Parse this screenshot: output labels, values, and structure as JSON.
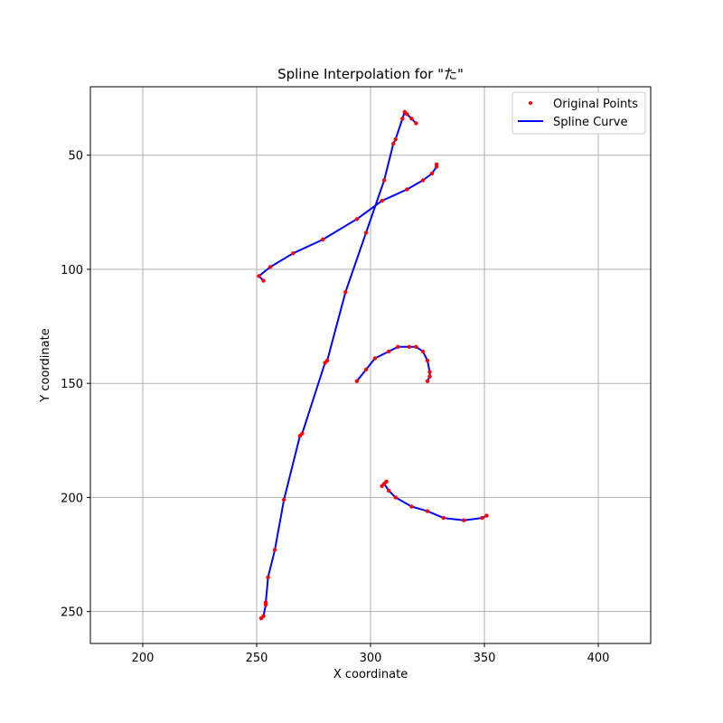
{
  "chart_data": {
    "type": "line",
    "title": "Spline Interpolation for \"た\"",
    "xlabel": "X coordinate",
    "ylabel": "Y coordinate",
    "xlim": [
      177,
      423
    ],
    "ylim": [
      264,
      20
    ],
    "y_inverted": true,
    "x_ticks": [
      200,
      250,
      300,
      350,
      400
    ],
    "y_ticks": [
      50,
      100,
      150,
      200,
      250
    ],
    "grid": true,
    "legend_position": "top-right",
    "series": [
      {
        "name": "Original Points",
        "kind": "points",
        "color": "#ff0000",
        "strokes": [
          [
            [
              320,
              36
            ],
            [
              318,
              34
            ],
            [
              316,
              32
            ],
            [
              315,
              31
            ],
            [
              314,
              34
            ],
            [
              311,
              43
            ],
            [
              310,
              45
            ],
            [
              306,
              61
            ],
            [
              298,
              84
            ],
            [
              289,
              110
            ],
            [
              281,
              140
            ],
            [
              280,
              141
            ],
            [
              270,
              172
            ],
            [
              269,
              173
            ],
            [
              262,
              201
            ],
            [
              258,
              223
            ],
            [
              255,
              235
            ],
            [
              254,
              246
            ],
            [
              254,
              247
            ],
            [
              253,
              252
            ],
            [
              252,
              253
            ]
          ],
          [
            [
              253,
              105
            ],
            [
              251,
              103
            ],
            [
              256,
              99
            ],
            [
              266,
              93
            ],
            [
              279,
              87
            ],
            [
              294,
              78
            ],
            [
              305,
              70
            ],
            [
              316,
              65
            ],
            [
              323,
              61
            ],
            [
              327,
              58
            ],
            [
              329,
              55
            ],
            [
              329,
              54
            ]
          ],
          [
            [
              294,
              149
            ],
            [
              298,
              144
            ],
            [
              302,
              139
            ],
            [
              308,
              136
            ],
            [
              312,
              134
            ],
            [
              317,
              134
            ],
            [
              320,
              134
            ],
            [
              323,
              136
            ],
            [
              325,
              140
            ],
            [
              326,
              145
            ],
            [
              326,
              147
            ],
            [
              325,
              149
            ]
          ],
          [
            [
              307,
              193
            ],
            [
              305,
              195
            ],
            [
              306,
              194
            ],
            [
              308,
              197
            ],
            [
              311,
              200
            ],
            [
              318,
              204
            ],
            [
              325,
              206
            ],
            [
              332,
              209
            ],
            [
              341,
              210
            ],
            [
              349,
              209
            ],
            [
              351,
              208
            ]
          ]
        ]
      },
      {
        "name": "Spline Curve",
        "kind": "line",
        "color": "#0000ff",
        "strokes": [
          [
            [
              320,
              36
            ],
            [
              318,
              34
            ],
            [
              316,
              32
            ],
            [
              315,
              31
            ],
            [
              314,
              34
            ],
            [
              311,
              43
            ],
            [
              310,
              45
            ],
            [
              306,
              61
            ],
            [
              298,
              84
            ],
            [
              289,
              110
            ],
            [
              281,
              140
            ],
            [
              280,
              141
            ],
            [
              270,
              172
            ],
            [
              269,
              173
            ],
            [
              262,
              201
            ],
            [
              258,
              223
            ],
            [
              255,
              235
            ],
            [
              254,
              246
            ],
            [
              254,
              247
            ],
            [
              253,
              252
            ],
            [
              252,
              253
            ]
          ],
          [
            [
              253,
              105
            ],
            [
              251,
              103
            ],
            [
              256,
              99
            ],
            [
              266,
              93
            ],
            [
              279,
              87
            ],
            [
              294,
              78
            ],
            [
              305,
              70
            ],
            [
              316,
              65
            ],
            [
              323,
              61
            ],
            [
              327,
              58
            ],
            [
              329,
              55
            ],
            [
              329,
              54
            ]
          ],
          [
            [
              294,
              149
            ],
            [
              298,
              144
            ],
            [
              302,
              139
            ],
            [
              308,
              136
            ],
            [
              312,
              134
            ],
            [
              317,
              134
            ],
            [
              320,
              134
            ],
            [
              323,
              136
            ],
            [
              325,
              140
            ],
            [
              326,
              145
            ],
            [
              326,
              147
            ],
            [
              325,
              149
            ]
          ],
          [
            [
              307,
              193
            ],
            [
              305,
              195
            ],
            [
              306,
              194
            ],
            [
              308,
              197
            ],
            [
              311,
              200
            ],
            [
              318,
              204
            ],
            [
              325,
              206
            ],
            [
              332,
              209
            ],
            [
              341,
              210
            ],
            [
              349,
              209
            ],
            [
              351,
              208
            ]
          ]
        ]
      }
    ]
  }
}
